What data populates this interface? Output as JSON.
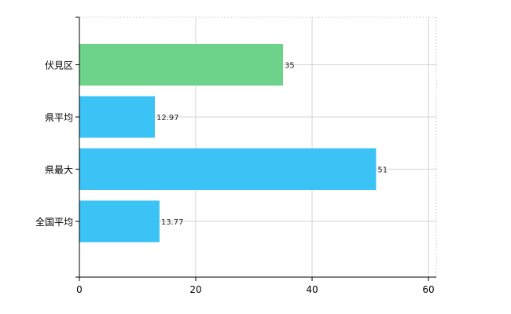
{
  "chart_data": {
    "type": "bar",
    "orientation": "horizontal",
    "categories": [
      "伏見区",
      "県平均",
      "県最大",
      "全国平均"
    ],
    "values": [
      35,
      12.97,
      51,
      13.77
    ],
    "value_labels": [
      "35",
      "12.97",
      "51",
      "13.77"
    ],
    "bar_colors": [
      "#6dd28a",
      "#3cc3f5",
      "#3cc3f5",
      "#3cc3f5"
    ],
    "xlim": [
      0,
      60
    ],
    "x_ticks": [
      0,
      20,
      40,
      60
    ],
    "x_tick_labels": [
      "0",
      "20",
      "40",
      "60"
    ],
    "grid": true,
    "title": "",
    "xlabel": "",
    "ylabel": ""
  }
}
